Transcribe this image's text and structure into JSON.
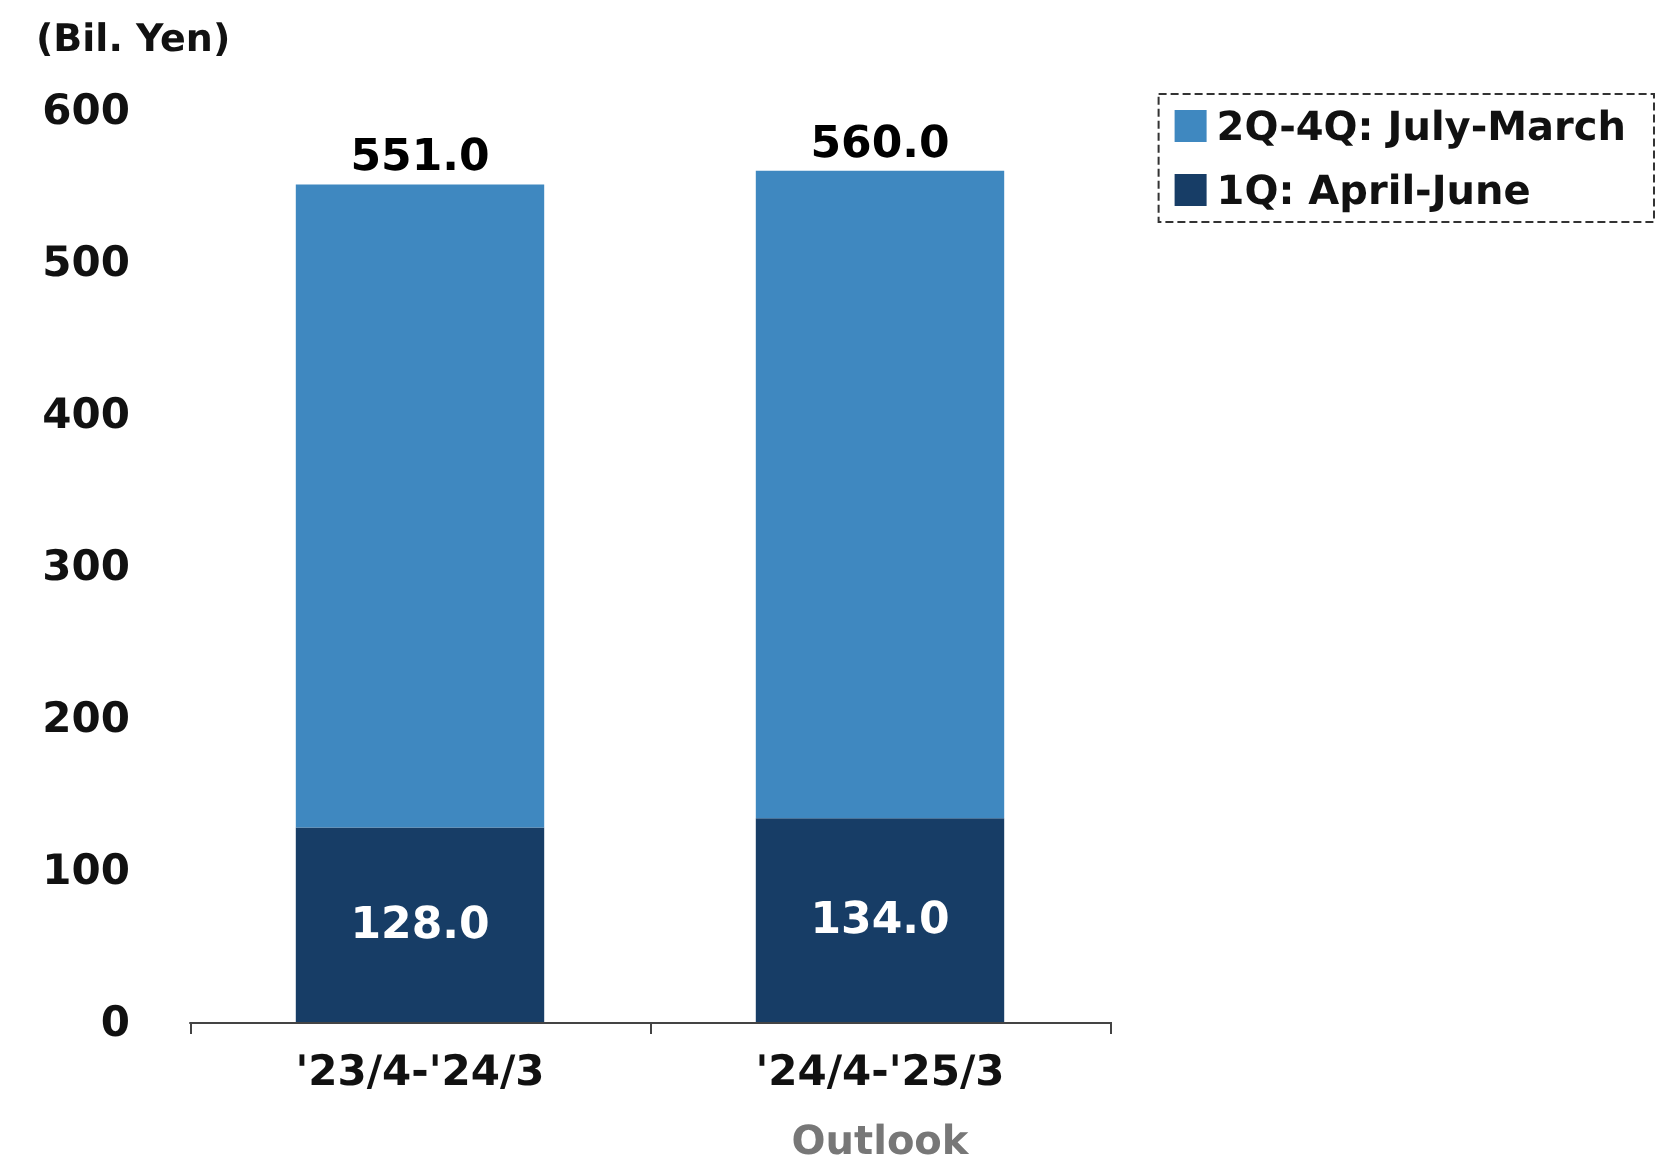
{
  "chart_data": {
    "type": "bar",
    "stacked": true,
    "ylabel": "(Bil. Yen)",
    "categories": [
      "'23/4-'24/3",
      "'24/4-'25/3"
    ],
    "series": [
      {
        "name": "1Q: April-June",
        "color": "#173d66",
        "values": [
          128,
          134
        ],
        "value_labels": [
          "128.0",
          "134.0"
        ]
      },
      {
        "name": "2Q-4Q: July-March",
        "color": "#3f88c0",
        "values": [
          423,
          426
        ]
      }
    ],
    "totals": [
      "551.0",
      "560.0"
    ],
    "annotations": [
      "Outlook"
    ],
    "ylim": [
      0,
      600
    ],
    "yticks": [
      0,
      100,
      200,
      300,
      400,
      500,
      600
    ],
    "grid": false,
    "legend": "top right"
  }
}
